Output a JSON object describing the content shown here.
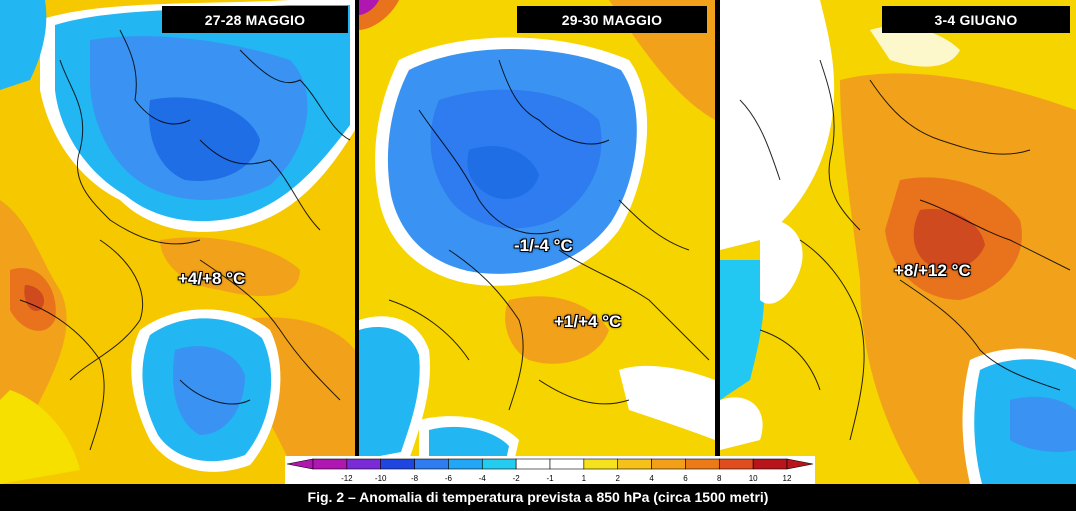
{
  "panels": [
    {
      "title": "27-28 MAGGIO",
      "annotations": [
        "+4/+8 °C"
      ]
    },
    {
      "title": "29-30 MAGGIO",
      "annotations": [
        "-1/-4 °C",
        "+1/+4 °C"
      ]
    },
    {
      "title": "3-4 GIUGNO",
      "annotations": [
        "+8/+12 °C"
      ]
    }
  ],
  "colorbar": {
    "ticks": [
      "-12",
      "-10",
      "-8",
      "-6",
      "-4",
      "-2",
      "-1",
      "1",
      "2",
      "4",
      "6",
      "8",
      "10",
      "12"
    ],
    "colors": [
      "#b016b0",
      "#7a2bd6",
      "#2046e0",
      "#2f7bf0",
      "#22a6f6",
      "#24cdf0",
      "#ffffff",
      "#ffffff",
      "#f6e21c",
      "#f6c21a",
      "#f3a018",
      "#ec7a16",
      "#e04e1e",
      "#b8141c"
    ]
  },
  "caption": "Fig. 2 – Anomalia di temperatura prevista a 850 hPa (circa 1500 metri)",
  "map_colors": {
    "deep_blue": "#1f6ee6",
    "blue": "#3a93f2",
    "light_blue": "#22c8f2",
    "white": "#ffffff",
    "yellow": "#f6d400",
    "orange": "#f2a21a",
    "dark_orange": "#e8731c",
    "red": "#cf4a1e"
  }
}
